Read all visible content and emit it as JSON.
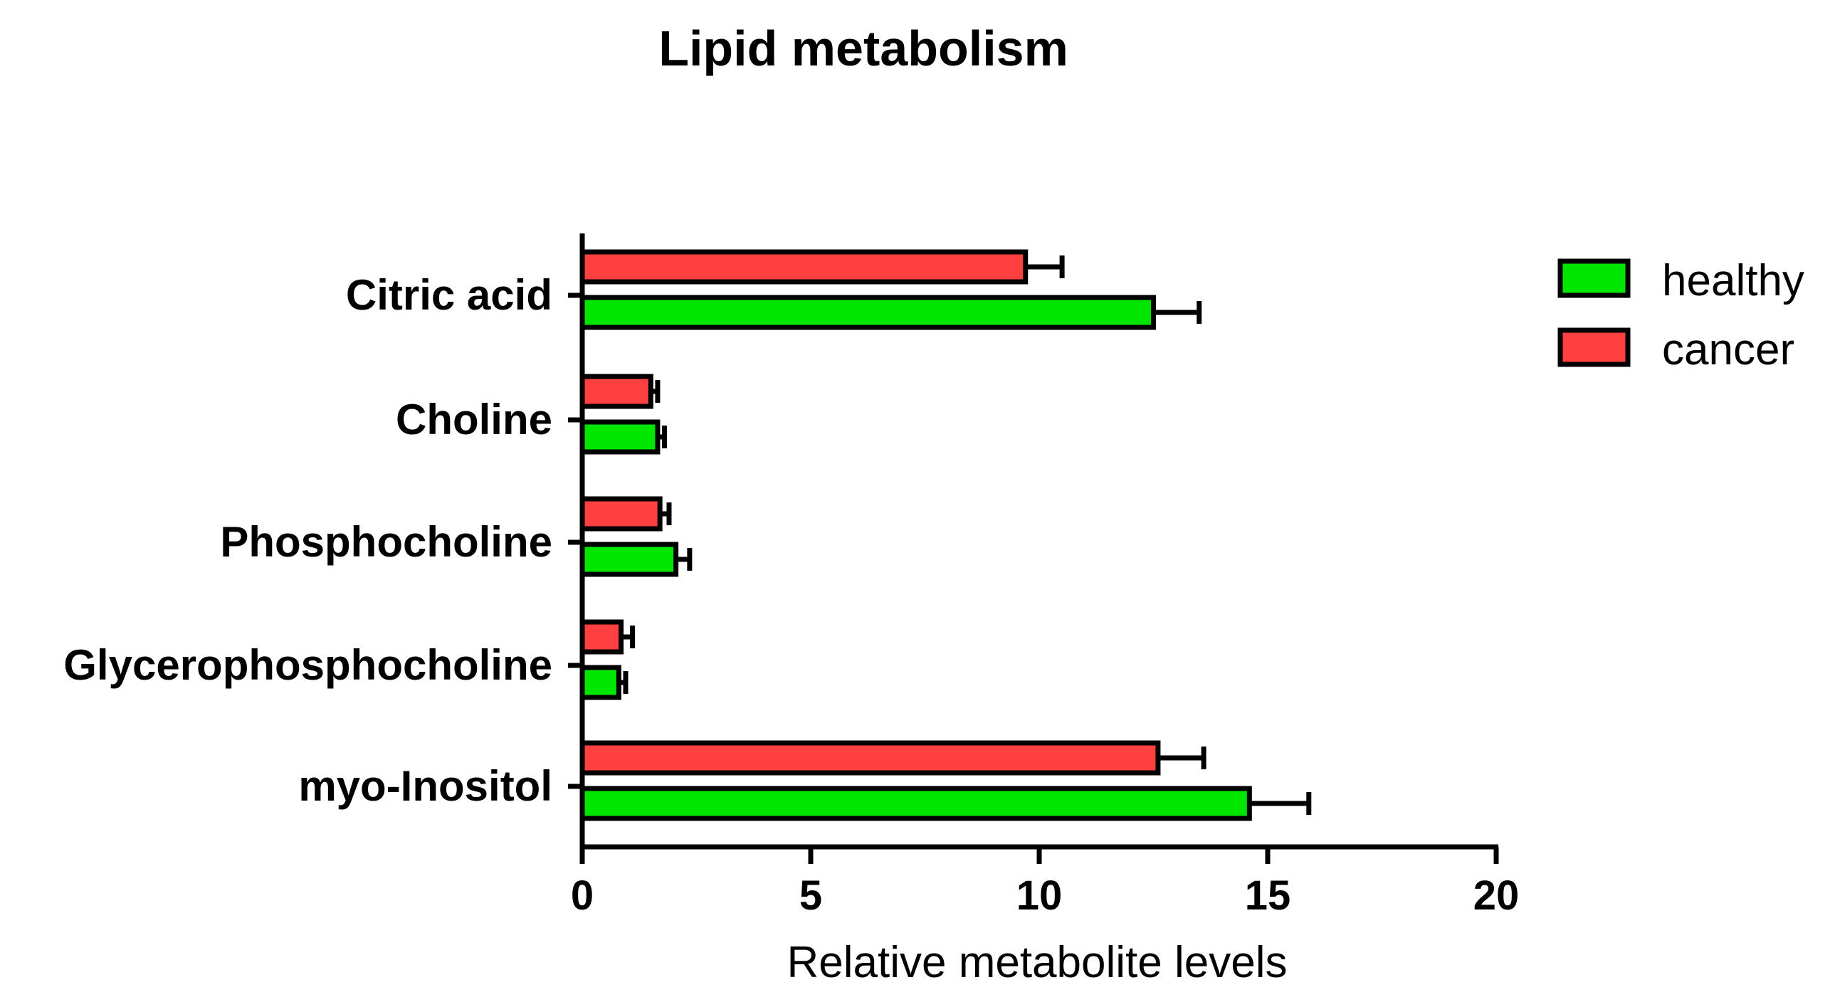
{
  "chart_data": {
    "type": "bar",
    "orientation": "horizontal",
    "title": "Lipid metabolism",
    "xlabel": "Relative metabolite levels",
    "ylabel": "",
    "xlim": [
      0,
      20
    ],
    "x_ticks": [
      0,
      5,
      10,
      15,
      20
    ],
    "categories": [
      "Citric acid",
      "Choline",
      "Phosphocholine",
      "Glycerophosphocholine",
      "myo-Inositol"
    ],
    "series": [
      {
        "name": "cancer",
        "color": "#ff4040",
        "values": [
          9.7,
          1.5,
          1.7,
          0.85,
          12.6
        ],
        "errors": [
          0.8,
          0.15,
          0.2,
          0.25,
          1.0
        ]
      },
      {
        "name": "healthy",
        "color": "#00e600",
        "values": [
          12.5,
          1.65,
          2.05,
          0.8,
          14.6
        ],
        "errors": [
          1.0,
          0.15,
          0.3,
          0.15,
          1.3
        ]
      }
    ],
    "legend": {
      "position": "top-right",
      "entries": [
        {
          "label": "healthy",
          "color": "#00e600"
        },
        {
          "label": "cancer",
          "color": "#ff4040"
        }
      ]
    },
    "grid": false
  }
}
